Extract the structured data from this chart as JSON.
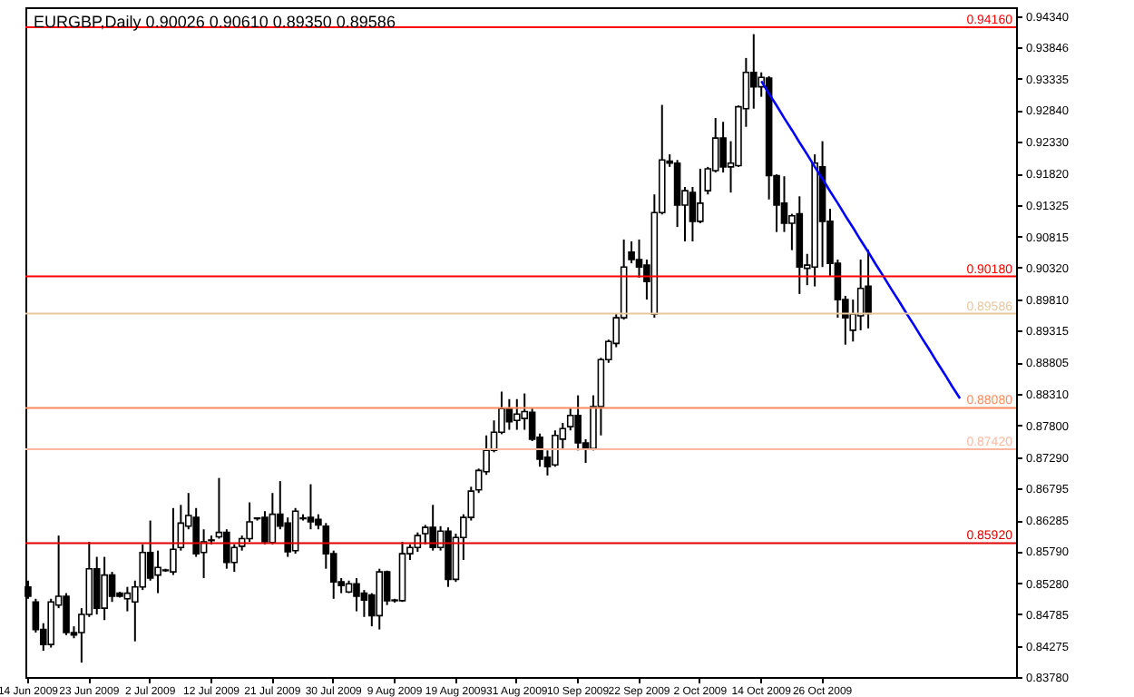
{
  "chart_data": {
    "type": "candlestick",
    "title": "EURGBP,Daily  0.90026 0.90610 0.89350 0.89586",
    "categories": [
      "14 Jun 2009",
      null,
      null,
      null,
      null,
      null,
      null,
      null,
      "23 Jun 2009",
      null,
      null,
      null,
      null,
      null,
      null,
      null,
      "2 Jul 2009",
      null,
      null,
      null,
      null,
      null,
      null,
      null,
      "12 Jul 2009",
      null,
      null,
      null,
      null,
      null,
      null,
      null,
      "21 Jul 2009",
      null,
      null,
      null,
      null,
      null,
      null,
      null,
      "30 Jul 2009",
      null,
      null,
      null,
      null,
      null,
      null,
      null,
      "9 Aug 2009",
      null,
      null,
      null,
      null,
      null,
      null,
      null,
      "19 Aug 2009",
      null,
      null,
      null,
      null,
      null,
      null,
      null,
      "31 Aug 2009",
      null,
      null,
      null,
      null,
      null,
      null,
      null,
      "10 Sep 2009",
      null,
      null,
      null,
      null,
      null,
      null,
      null,
      "22 Sep 2009",
      null,
      null,
      null,
      null,
      null,
      null,
      null,
      "2 Oct 2009",
      null,
      null,
      null,
      null,
      null,
      null,
      null,
      "14 Oct 2009",
      null,
      null,
      null,
      null,
      null,
      null,
      null,
      "26 Oct 2009",
      null,
      null,
      null,
      null,
      null,
      null,
      null,
      null,
      null,
      null,
      null,
      null,
      null,
      null,
      null,
      null,
      null,
      null,
      null,
      null,
      null,
      null,
      null,
      null,
      null
    ],
    "ohlc": [
      [
        0.8522,
        0.8532,
        0.8503,
        0.8507
      ],
      [
        0.8498,
        0.8503,
        0.8449,
        0.8454
      ],
      [
        0.8454,
        0.8464,
        0.842,
        0.843
      ],
      [
        0.843,
        0.8503,
        0.8425,
        0.8498
      ],
      [
        0.8493,
        0.8604,
        0.8488,
        0.8507
      ],
      [
        0.8507,
        0.8512,
        0.8445,
        0.8449
      ],
      [
        0.8449,
        0.8459,
        0.844,
        0.8445
      ],
      [
        0.8449,
        0.8488,
        0.8401,
        0.8478
      ],
      [
        0.8478,
        0.8594,
        0.8474,
        0.8551
      ],
      [
        0.8551,
        0.857,
        0.8478,
        0.8488
      ],
      [
        0.8488,
        0.857,
        0.8469,
        0.8541
      ],
      [
        0.8541,
        0.8546,
        0.8498,
        0.8507
      ],
      [
        0.8512,
        0.8514,
        0.8505,
        0.8507
      ],
      [
        0.8503,
        0.8522,
        0.8483,
        0.8512
      ],
      [
        0.8498,
        0.8532,
        0.8435,
        0.8522
      ],
      [
        0.8522,
        0.859,
        0.8517,
        0.8577
      ],
      [
        0.8577,
        0.8628,
        0.8532,
        0.8536
      ],
      [
        0.8541,
        0.858,
        0.8512,
        0.8553
      ],
      [
        0.8548,
        0.8551,
        0.8546,
        0.8549
      ],
      [
        0.8546,
        0.8648,
        0.8541,
        0.8582
      ],
      [
        0.8585,
        0.8653,
        0.858,
        0.8624
      ],
      [
        0.8619,
        0.8672,
        0.8614,
        0.8636
      ],
      [
        0.8633,
        0.8648,
        0.857,
        0.8575
      ],
      [
        0.8577,
        0.8614,
        0.8536,
        0.8594
      ],
      [
        0.8596,
        0.8604,
        0.859,
        0.8597
      ],
      [
        0.8602,
        0.8696,
        0.8599,
        0.8609
      ],
      [
        0.8609,
        0.8614,
        0.8551,
        0.8561
      ],
      [
        0.8561,
        0.859,
        0.8546,
        0.8585
      ],
      [
        0.8587,
        0.8604,
        0.858,
        0.8599
      ],
      [
        0.8599,
        0.8657,
        0.8594,
        0.8626
      ],
      [
        0.8631,
        0.8633,
        0.8628,
        0.8632
      ],
      [
        0.8633,
        0.8643,
        0.859,
        0.8594
      ],
      [
        0.8593,
        0.8672,
        0.859,
        0.8638
      ],
      [
        0.8638,
        0.8691,
        0.8614,
        0.8619
      ],
      [
        0.8624,
        0.8633,
        0.857,
        0.8578
      ],
      [
        0.858,
        0.8648,
        0.8575,
        0.8643
      ],
      [
        0.8631,
        0.8638,
        0.8628,
        0.8632
      ],
      [
        0.8633,
        0.8686,
        0.8614,
        0.8626
      ],
      [
        0.863,
        0.8638,
        0.8614,
        0.8621
      ],
      [
        0.8619,
        0.8624,
        0.8551,
        0.8575
      ],
      [
        0.8575,
        0.858,
        0.8503,
        0.853
      ],
      [
        0.853,
        0.8536,
        0.8512,
        0.8524
      ],
      [
        0.8514,
        0.8532,
        0.8512,
        0.8527
      ],
      [
        0.8527,
        0.8536,
        0.8483,
        0.8507
      ],
      [
        0.8512,
        0.8517,
        0.8474,
        0.8501
      ],
      [
        0.8509,
        0.8512,
        0.8459,
        0.8476
      ],
      [
        0.8476,
        0.8551,
        0.8454,
        0.8546
      ],
      [
        0.8546,
        0.8548,
        0.8493,
        0.85
      ],
      [
        0.85,
        0.8503,
        0.8497,
        0.8501
      ],
      [
        0.85,
        0.8594,
        0.8498,
        0.8575
      ],
      [
        0.8575,
        0.859,
        0.8565,
        0.8585
      ],
      [
        0.8585,
        0.8609,
        0.8578,
        0.8604
      ],
      [
        0.8607,
        0.8621,
        0.859,
        0.8617
      ],
      [
        0.8617,
        0.8653,
        0.858,
        0.8585
      ],
      [
        0.8585,
        0.8619,
        0.858,
        0.8611
      ],
      [
        0.8611,
        0.8617,
        0.8522,
        0.8534
      ],
      [
        0.8534,
        0.8607,
        0.853,
        0.8601
      ],
      [
        0.8601,
        0.8638,
        0.8565,
        0.8633
      ],
      [
        0.8633,
        0.8682,
        0.8628,
        0.8675
      ],
      [
        0.8677,
        0.8711,
        0.8672,
        0.8708
      ],
      [
        0.8706,
        0.8764,
        0.8701,
        0.874
      ],
      [
        0.874,
        0.8788,
        0.8737,
        0.8769
      ],
      [
        0.8769,
        0.8834,
        0.8766,
        0.8807
      ],
      [
        0.8807,
        0.8822,
        0.8773,
        0.8786
      ],
      [
        0.8788,
        0.8822,
        0.8773,
        0.8798
      ],
      [
        0.8791,
        0.8831,
        0.8773,
        0.8802
      ],
      [
        0.8801,
        0.8807,
        0.8755,
        0.8758
      ],
      [
        0.8761,
        0.8767,
        0.8714,
        0.8726
      ],
      [
        0.8729,
        0.874,
        0.87,
        0.8714
      ],
      [
        0.8717,
        0.8772,
        0.8714,
        0.8764
      ],
      [
        0.8758,
        0.8784,
        0.8743,
        0.8775
      ],
      [
        0.8778,
        0.8807,
        0.8772,
        0.8796
      ],
      [
        0.8796,
        0.8828,
        0.874,
        0.8752
      ],
      [
        0.8752,
        0.8758,
        0.872,
        0.8743
      ],
      [
        0.8743,
        0.8828,
        0.874,
        0.881
      ],
      [
        0.881,
        0.8888,
        0.8764,
        0.8885
      ],
      [
        0.8885,
        0.8917,
        0.888,
        0.8914
      ],
      [
        0.8911,
        0.8958,
        0.8905,
        0.8952
      ],
      [
        0.8952,
        0.9077,
        0.8949,
        0.9033
      ],
      [
        0.9057,
        0.9074,
        0.9039,
        0.9045
      ],
      [
        0.9045,
        0.9077,
        0.9016,
        0.9033
      ],
      [
        0.9036,
        0.9045,
        0.8981,
        0.901
      ],
      [
        0.8958,
        0.9149,
        0.8952,
        0.912
      ],
      [
        0.912,
        0.9292,
        0.9117,
        0.9204
      ],
      [
        0.9202,
        0.9213,
        0.9193,
        0.9199
      ],
      [
        0.9199,
        0.9204,
        0.9097,
        0.9132
      ],
      [
        0.9132,
        0.9161,
        0.9074,
        0.9155
      ],
      [
        0.9152,
        0.9161,
        0.9074,
        0.9106
      ],
      [
        0.9106,
        0.919,
        0.9103,
        0.9135
      ],
      [
        0.9155,
        0.9193,
        0.9149,
        0.919
      ],
      [
        0.9187,
        0.9271,
        0.9184,
        0.9239
      ],
      [
        0.9239,
        0.9265,
        0.9184,
        0.9193
      ],
      [
        0.9193,
        0.9234,
        0.9152,
        0.9199
      ],
      [
        0.9195,
        0.9291,
        0.9193,
        0.9289
      ],
      [
        0.9286,
        0.9367,
        0.9257,
        0.9344
      ],
      [
        0.9344,
        0.9405,
        0.9286,
        0.9321
      ],
      [
        0.9321,
        0.9344,
        0.9305,
        0.9336
      ],
      [
        0.9335,
        0.9338,
        0.9141,
        0.9179
      ],
      [
        0.9179,
        0.9181,
        0.9089,
        0.9132
      ],
      [
        0.9135,
        0.9178,
        0.9089,
        0.9103
      ],
      [
        0.9103,
        0.9118,
        0.906,
        0.9115
      ],
      [
        0.9118,
        0.9146,
        0.899,
        0.9033
      ],
      [
        0.9031,
        0.9054,
        0.9004,
        0.9036
      ],
      [
        0.9033,
        0.9213,
        0.9002,
        0.9199
      ],
      [
        0.9193,
        0.9234,
        0.9033,
        0.9106
      ],
      [
        0.9106,
        0.9126,
        0.9019,
        0.9039
      ],
      [
        0.9039,
        0.9045,
        0.8952,
        0.8981
      ],
      [
        0.8981,
        0.8987,
        0.8909,
        0.8952
      ],
      [
        0.8932,
        0.8981,
        0.8914,
        0.8958
      ],
      [
        0.8955,
        0.9045,
        0.8932,
        0.8999
      ],
      [
        0.90026,
        0.9061,
        0.8935,
        0.89586
      ],
      null,
      null,
      null,
      null,
      null,
      null,
      null,
      null,
      null,
      null,
      null,
      null,
      null,
      null,
      null,
      null,
      null,
      null,
      null
    ],
    "series": [
      {
        "type": "line",
        "color": "#0000ff",
        "values": [
          null,
          null,
          null,
          null,
          null,
          null,
          null,
          null,
          null,
          null,
          null,
          null,
          null,
          null,
          null,
          null,
          null,
          null,
          null,
          null,
          null,
          null,
          null,
          null,
          null,
          null,
          null,
          null,
          null,
          null,
          null,
          null,
          null,
          null,
          null,
          null,
          null,
          null,
          null,
          null,
          null,
          null,
          null,
          null,
          null,
          null,
          null,
          null,
          null,
          null,
          null,
          null,
          null,
          null,
          null,
          null,
          null,
          null,
          null,
          null,
          null,
          null,
          null,
          null,
          null,
          null,
          null,
          null,
          null,
          null,
          null,
          null,
          null,
          null,
          null,
          null,
          null,
          null,
          null,
          null,
          null,
          null,
          null,
          null,
          null,
          null,
          null,
          null,
          null,
          null,
          null,
          null,
          null,
          null,
          null,
          null,
          0.933,
          0.931,
          0.9291,
          0.9271,
          0.9252,
          0.9232,
          0.9213,
          0.9193,
          0.9174,
          0.9154,
          0.9135,
          0.9115,
          0.9096,
          0.9076,
          0.9057,
          0.9037,
          0.9018,
          0.8998,
          0.8979,
          0.8959,
          0.894,
          0.892,
          0.8901,
          0.8881,
          0.8862,
          0.8842,
          0.8823,
          null,
          null,
          null,
          null,
          null,
          null,
          null
        ]
      }
    ],
    "ylim": [
      0.8378,
      0.9448
    ],
    "yticks": [
      {
        "value": 0.8378,
        "label": "0.83780"
      },
      {
        "value": 0.84275,
        "label": "0.84275"
      },
      {
        "value": 0.84785,
        "label": "0.84785"
      },
      {
        "value": 0.8528,
        "label": "0.85280"
      },
      {
        "value": 0.8579,
        "label": "0.85790"
      },
      {
        "value": 0.86285,
        "label": "0.86285"
      },
      {
        "value": 0.86795,
        "label": "0.86795"
      },
      {
        "value": 0.8729,
        "label": "0.87290"
      },
      {
        "value": 0.878,
        "label": "0.87800"
      },
      {
        "value": 0.8831,
        "label": "0.88310"
      },
      {
        "value": 0.88805,
        "label": "0.88805"
      },
      {
        "value": 0.89315,
        "label": "0.89315"
      },
      {
        "value": 0.8981,
        "label": "0.89810"
      },
      {
        "value": 0.9032,
        "label": "0.90320"
      },
      {
        "value": 0.90815,
        "label": "0.90815"
      },
      {
        "value": 0.91325,
        "label": "0.91325"
      },
      {
        "value": 0.9182,
        "label": "0.91820"
      },
      {
        "value": 0.9233,
        "label": "0.92330"
      },
      {
        "value": 0.9284,
        "label": "0.92840"
      },
      {
        "value": 0.93335,
        "label": "0.93335"
      },
      {
        "value": 0.93846,
        "label": "0.93846"
      },
      {
        "value": 0.9434,
        "label": "0.94340"
      }
    ],
    "ref_lines": [
      {
        "axis": "y",
        "value": 0.9416,
        "label": "0.94160",
        "color": "#ff0000"
      },
      {
        "axis": "y",
        "value": 0.9018,
        "label": "0.90180",
        "color": "#ff0000"
      },
      {
        "axis": "y",
        "value": 0.89586,
        "label": "0.89586",
        "color": "#e8c8a0"
      },
      {
        "axis": "y",
        "value": 0.8808,
        "label": "0.88080",
        "color": "#ff8c60"
      },
      {
        "axis": "y",
        "value": 0.8742,
        "label": "0.87420",
        "color": "#ffb8a0"
      },
      {
        "axis": "y",
        "value": 0.8592,
        "label": "0.85920",
        "color": "#e00000"
      }
    ]
  }
}
